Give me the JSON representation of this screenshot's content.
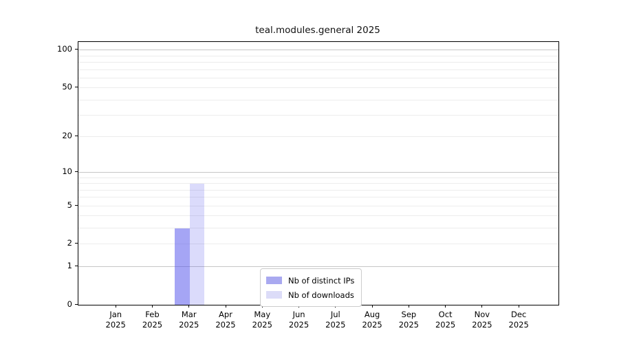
{
  "chart_data": {
    "type": "bar",
    "title": "teal.modules.general 2025",
    "categories": [
      "Jan 2025",
      "Feb 2025",
      "Mar 2025",
      "Apr 2025",
      "May 2025",
      "Jun 2025",
      "Jul 2025",
      "Aug 2025",
      "Sep 2025",
      "Oct 2025",
      "Nov 2025",
      "Dec 2025"
    ],
    "series": [
      {
        "name": "Nb of distinct IPs",
        "color": "rgba(75,75,235,0.5)",
        "swatch_hex": "#a9a9f0",
        "values": [
          0,
          0,
          3,
          0,
          0,
          0,
          0,
          0,
          0,
          0,
          0,
          0
        ]
      },
      {
        "name": "Nb of downloads",
        "color": "rgba(75,75,235,0.2)",
        "swatch_hex": "#dcdcf8",
        "values": [
          0,
          0,
          8,
          0,
          0,
          0,
          0,
          0,
          0,
          0,
          0,
          0
        ]
      }
    ],
    "xlabel": "",
    "ylabel": "",
    "y_scale": "log1p",
    "ylim": [
      0,
      116
    ],
    "y_tick_labels": [
      0,
      1,
      2,
      5,
      10,
      20,
      50,
      100
    ],
    "grid_major_values": [
      1,
      10,
      100
    ],
    "grid_minor_values": [
      2,
      3,
      4,
      5,
      6,
      7,
      8,
      9,
      20,
      30,
      40,
      50,
      60,
      70,
      80,
      90
    ],
    "legend_position": "lower center",
    "grid": true
  }
}
